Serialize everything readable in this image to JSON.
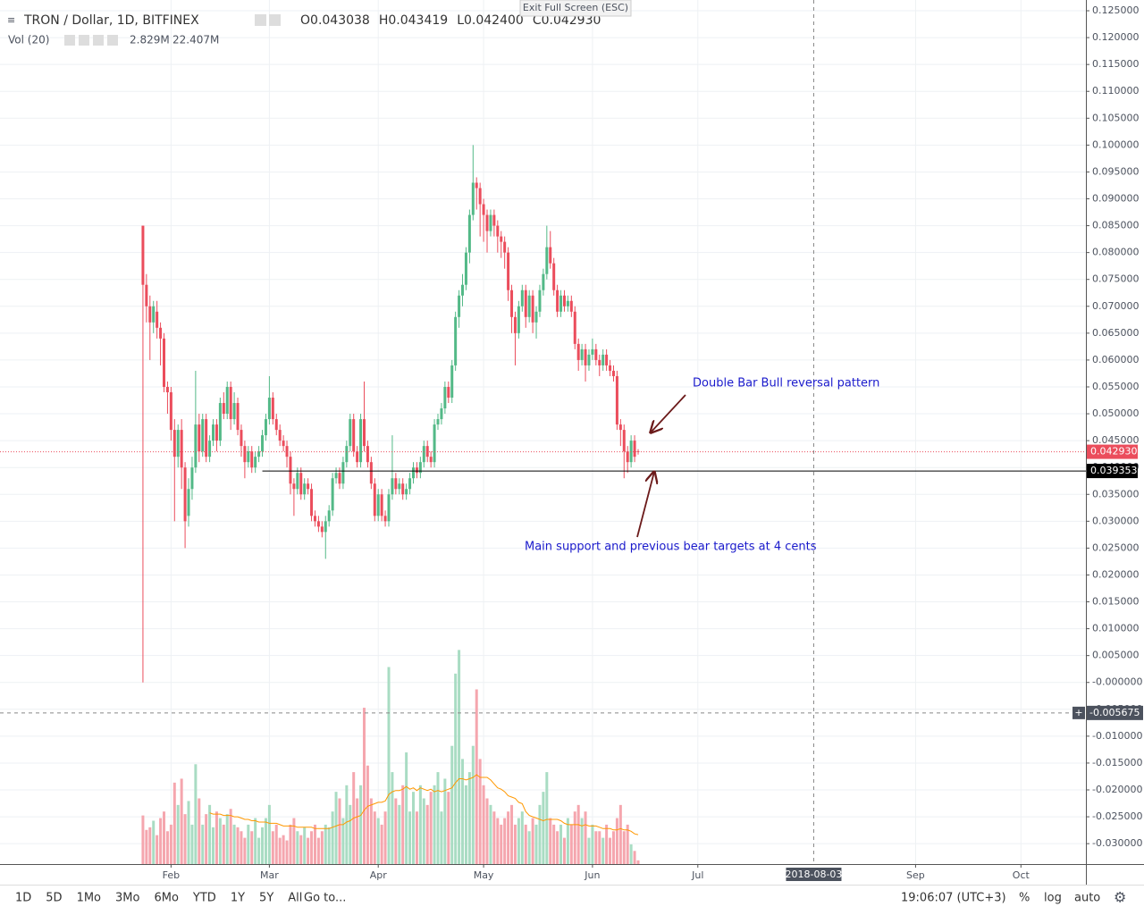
{
  "chart_data": {
    "type": "candlestick",
    "title": "TRON / Dollar, 1D, BITFINEX",
    "ohlc_legend": [
      {
        "label": "O",
        "value": "0.043038"
      },
      {
        "label": "H",
        "value": "0.043419"
      },
      {
        "label": "L",
        "value": "0.042400"
      },
      {
        "label": "C",
        "value": "0.042930"
      }
    ],
    "volume_legend": {
      "label": "Vol (20)",
      "value": "2.829M",
      "ma_value": "22.407M"
    },
    "up_color": "#53b987",
    "down_color": "#eb4d5c",
    "grid": true,
    "xlim": [
      -40.7,
      268.5
    ],
    "xticks": [
      {
        "value": 8,
        "label": "Feb"
      },
      {
        "value": 36,
        "label": "Mar"
      },
      {
        "value": 67,
        "label": "Apr"
      },
      {
        "value": 97,
        "label": "May"
      },
      {
        "value": 128,
        "label": "Jun"
      },
      {
        "value": 158,
        "label": "Jul"
      },
      {
        "value": 220,
        "label": "Sep"
      },
      {
        "value": 250,
        "label": "Oct"
      }
    ],
    "ylim": [
      -0.0338,
      0.127
    ],
    "yticks": [
      {
        "value": 0.125,
        "label": "0.125000"
      },
      {
        "value": 0.12,
        "label": "0.120000"
      },
      {
        "value": 0.115,
        "label": "0.115000"
      },
      {
        "value": 0.11,
        "label": "0.110000"
      },
      {
        "value": 0.105,
        "label": "0.105000"
      },
      {
        "value": 0.1,
        "label": "0.100000"
      },
      {
        "value": 0.095,
        "label": "0.095000"
      },
      {
        "value": 0.09,
        "label": "0.090000"
      },
      {
        "value": 0.085,
        "label": "0.085000"
      },
      {
        "value": 0.08,
        "label": "0.080000"
      },
      {
        "value": 0.075,
        "label": "0.075000"
      },
      {
        "value": 0.07,
        "label": "0.070000"
      },
      {
        "value": 0.065,
        "label": "0.065000"
      },
      {
        "value": 0.06,
        "label": "0.060000"
      },
      {
        "value": 0.055,
        "label": "0.055000"
      },
      {
        "value": 0.05,
        "label": "0.050000"
      },
      {
        "value": 0.045,
        "label": "0.045000"
      },
      {
        "value": 0.04,
        "label": "0.040000"
      },
      {
        "value": 0.035,
        "label": "0.035000"
      },
      {
        "value": 0.03,
        "label": "0.030000"
      },
      {
        "value": 0.025,
        "label": "0.025000"
      },
      {
        "value": 0.02,
        "label": "0.020000"
      },
      {
        "value": 0.015,
        "label": "0.015000"
      },
      {
        "value": 0.01,
        "label": "0.010000"
      },
      {
        "value": 0.005,
        "label": "0.005000"
      },
      {
        "value": 0,
        "label": "-0.000000"
      },
      {
        "value": -0.005,
        "label": "-0.005000"
      },
      {
        "value": -0.01,
        "label": "-0.010000"
      },
      {
        "value": -0.015,
        "label": "-0.015000"
      },
      {
        "value": -0.02,
        "label": "-0.020000"
      },
      {
        "value": -0.025,
        "label": "-0.025000"
      },
      {
        "value": -0.03,
        "label": "-0.030000"
      }
    ],
    "last_price": {
      "value": 0.04293,
      "label": "0.042930",
      "color": "#eb4d5c"
    },
    "support_line": {
      "value": 0.039353,
      "label": "0.039353",
      "x_from": 34,
      "color": "#000000"
    },
    "crosshair": {
      "x": {
        "value": 191,
        "label": "2018-08-03"
      },
      "y": {
        "value": -0.005675,
        "label": "-0.005675"
      }
    },
    "annotations": [
      "Double Bar Bull reversal pattern",
      "Main support and previous bear targets at 4 cents"
    ],
    "candles": [
      [
        0.085,
        0.085,
        0.0,
        0.074
      ],
      [
        0.074,
        0.076,
        0.067,
        0.07
      ],
      [
        0.07,
        0.072,
        0.06,
        0.067
      ],
      [
        0.067,
        0.071,
        0.065,
        0.07
      ],
      [
        0.069,
        0.071,
        0.064,
        0.066
      ],
      [
        0.066,
        0.067,
        0.059,
        0.064
      ],
      [
        0.064,
        0.065,
        0.054,
        0.055
      ],
      [
        0.055,
        0.056,
        0.05,
        0.054
      ],
      [
        0.054,
        0.055,
        0.045,
        0.047
      ],
      [
        0.047,
        0.049,
        0.03,
        0.042
      ],
      [
        0.042,
        0.048,
        0.04,
        0.047
      ],
      [
        0.047,
        0.049,
        0.036,
        0.04
      ],
      [
        0.04,
        0.041,
        0.025,
        0.03
      ],
      [
        0.031,
        0.038,
        0.029,
        0.036
      ],
      [
        0.036,
        0.042,
        0.034,
        0.04
      ],
      [
        0.04,
        0.058,
        0.039,
        0.048
      ],
      [
        0.048,
        0.05,
        0.041,
        0.043
      ],
      [
        0.043,
        0.05,
        0.042,
        0.049
      ],
      [
        0.049,
        0.05,
        0.041,
        0.042
      ],
      [
        0.042,
        0.046,
        0.041,
        0.045
      ],
      [
        0.045,
        0.049,
        0.044,
        0.048
      ],
      [
        0.048,
        0.049,
        0.043,
        0.045
      ],
      [
        0.045,
        0.053,
        0.044,
        0.052
      ],
      [
        0.052,
        0.054,
        0.049,
        0.05
      ],
      [
        0.05,
        0.056,
        0.049,
        0.055
      ],
      [
        0.055,
        0.056,
        0.047,
        0.049
      ],
      [
        0.049,
        0.054,
        0.048,
        0.052
      ],
      [
        0.052,
        0.053,
        0.046,
        0.047
      ],
      [
        0.047,
        0.048,
        0.042,
        0.044
      ],
      [
        0.044,
        0.045,
        0.038,
        0.041
      ],
      [
        0.041,
        0.044,
        0.04,
        0.043
      ],
      [
        0.043,
        0.044,
        0.039,
        0.04
      ],
      [
        0.04,
        0.043,
        0.039,
        0.042
      ],
      [
        0.042,
        0.044,
        0.041,
        0.043
      ],
      [
        0.043,
        0.047,
        0.042,
        0.046
      ],
      [
        0.046,
        0.05,
        0.045,
        0.049
      ],
      [
        0.049,
        0.057,
        0.048,
        0.053
      ],
      [
        0.053,
        0.054,
        0.048,
        0.049
      ],
      [
        0.049,
        0.05,
        0.046,
        0.047
      ],
      [
        0.047,
        0.048,
        0.044,
        0.045
      ],
      [
        0.045,
        0.046,
        0.043,
        0.044
      ],
      [
        0.044,
        0.045,
        0.04,
        0.042
      ],
      [
        0.042,
        0.043,
        0.035,
        0.037
      ],
      [
        0.037,
        0.038,
        0.031,
        0.036
      ],
      [
        0.036,
        0.04,
        0.035,
        0.039
      ],
      [
        0.039,
        0.04,
        0.034,
        0.035
      ],
      [
        0.035,
        0.038,
        0.034,
        0.037
      ],
      [
        0.037,
        0.038,
        0.035,
        0.036
      ],
      [
        0.036,
        0.037,
        0.03,
        0.031
      ],
      [
        0.031,
        0.032,
        0.029,
        0.03
      ],
      [
        0.03,
        0.031,
        0.028,
        0.029
      ],
      [
        0.029,
        0.03,
        0.027,
        0.028
      ],
      [
        0.028,
        0.031,
        0.023,
        0.03
      ],
      [
        0.03,
        0.033,
        0.029,
        0.032
      ],
      [
        0.032,
        0.039,
        0.031,
        0.038
      ],
      [
        0.038,
        0.04,
        0.037,
        0.039
      ],
      [
        0.039,
        0.04,
        0.036,
        0.037
      ],
      [
        0.037,
        0.042,
        0.036,
        0.041
      ],
      [
        0.041,
        0.045,
        0.04,
        0.044
      ],
      [
        0.044,
        0.05,
        0.043,
        0.049
      ],
      [
        0.049,
        0.05,
        0.042,
        0.043
      ],
      [
        0.043,
        0.044,
        0.04,
        0.041
      ],
      [
        0.041,
        0.05,
        0.04,
        0.049
      ],
      [
        0.049,
        0.056,
        0.043,
        0.044
      ],
      [
        0.044,
        0.045,
        0.04,
        0.041
      ],
      [
        0.041,
        0.042,
        0.036,
        0.037
      ],
      [
        0.037,
        0.038,
        0.03,
        0.031
      ],
      [
        0.031,
        0.036,
        0.03,
        0.035
      ],
      [
        0.035,
        0.036,
        0.03,
        0.031
      ],
      [
        0.031,
        0.032,
        0.029,
        0.03
      ],
      [
        0.03,
        0.036,
        0.029,
        0.035
      ],
      [
        0.035,
        0.046,
        0.034,
        0.038
      ],
      [
        0.038,
        0.039,
        0.035,
        0.036
      ],
      [
        0.036,
        0.038,
        0.035,
        0.037
      ],
      [
        0.037,
        0.038,
        0.034,
        0.035
      ],
      [
        0.035,
        0.037,
        0.034,
        0.036
      ],
      [
        0.036,
        0.039,
        0.035,
        0.038
      ],
      [
        0.038,
        0.041,
        0.037,
        0.04
      ],
      [
        0.04,
        0.041,
        0.038,
        0.039
      ],
      [
        0.039,
        0.042,
        0.038,
        0.041
      ],
      [
        0.041,
        0.045,
        0.04,
        0.044
      ],
      [
        0.044,
        0.045,
        0.041,
        0.042
      ],
      [
        0.042,
        0.043,
        0.04,
        0.041
      ],
      [
        0.041,
        0.049,
        0.04,
        0.048
      ],
      [
        0.048,
        0.05,
        0.047,
        0.049
      ],
      [
        0.049,
        0.052,
        0.048,
        0.051
      ],
      [
        0.051,
        0.056,
        0.05,
        0.055
      ],
      [
        0.055,
        0.056,
        0.052,
        0.053
      ],
      [
        0.053,
        0.06,
        0.052,
        0.059
      ],
      [
        0.059,
        0.069,
        0.058,
        0.068
      ],
      [
        0.068,
        0.073,
        0.066,
        0.072
      ],
      [
        0.072,
        0.076,
        0.07,
        0.074
      ],
      [
        0.074,
        0.081,
        0.073,
        0.08
      ],
      [
        0.08,
        0.088,
        0.078,
        0.087
      ],
      [
        0.087,
        0.1,
        0.086,
        0.093
      ],
      [
        0.093,
        0.094,
        0.088,
        0.092
      ],
      [
        0.092,
        0.093,
        0.083,
        0.089
      ],
      [
        0.089,
        0.09,
        0.082,
        0.087
      ],
      [
        0.087,
        0.088,
        0.08,
        0.084
      ],
      [
        0.084,
        0.088,
        0.083,
        0.087
      ],
      [
        0.087,
        0.088,
        0.083,
        0.085
      ],
      [
        0.085,
        0.086,
        0.08,
        0.083
      ],
      [
        0.083,
        0.084,
        0.079,
        0.082
      ],
      [
        0.082,
        0.083,
        0.077,
        0.08
      ],
      [
        0.08,
        0.081,
        0.071,
        0.073
      ],
      [
        0.073,
        0.074,
        0.065,
        0.068
      ],
      [
        0.068,
        0.069,
        0.059,
        0.065
      ],
      [
        0.065,
        0.071,
        0.064,
        0.07
      ],
      [
        0.07,
        0.074,
        0.069,
        0.073
      ],
      [
        0.073,
        0.074,
        0.066,
        0.068
      ],
      [
        0.068,
        0.073,
        0.067,
        0.072
      ],
      [
        0.072,
        0.073,
        0.065,
        0.067
      ],
      [
        0.067,
        0.07,
        0.064,
        0.069
      ],
      [
        0.069,
        0.074,
        0.068,
        0.073
      ],
      [
        0.073,
        0.077,
        0.072,
        0.076
      ],
      [
        0.076,
        0.085,
        0.075,
        0.081
      ],
      [
        0.081,
        0.084,
        0.077,
        0.078
      ],
      [
        0.078,
        0.079,
        0.072,
        0.073
      ],
      [
        0.073,
        0.074,
        0.068,
        0.069
      ],
      [
        0.069,
        0.073,
        0.068,
        0.072
      ],
      [
        0.072,
        0.073,
        0.069,
        0.07
      ],
      [
        0.07,
        0.072,
        0.069,
        0.071
      ],
      [
        0.071,
        0.072,
        0.068,
        0.069
      ],
      [
        0.069,
        0.07,
        0.062,
        0.063
      ],
      [
        0.063,
        0.064,
        0.058,
        0.06
      ],
      [
        0.06,
        0.063,
        0.059,
        0.062
      ],
      [
        0.062,
        0.063,
        0.056,
        0.059
      ],
      [
        0.059,
        0.062,
        0.058,
        0.061
      ],
      [
        0.061,
        0.064,
        0.06,
        0.062
      ],
      [
        0.062,
        0.063,
        0.059,
        0.06
      ],
      [
        0.06,
        0.061,
        0.057,
        0.059
      ],
      [
        0.059,
        0.062,
        0.058,
        0.061
      ],
      [
        0.061,
        0.062,
        0.058,
        0.059
      ],
      [
        0.059,
        0.06,
        0.057,
        0.058
      ],
      [
        0.058,
        0.059,
        0.056,
        0.057
      ],
      [
        0.057,
        0.058,
        0.047,
        0.048
      ],
      [
        0.048,
        0.049,
        0.044,
        0.047
      ],
      [
        0.047,
        0.048,
        0.038,
        0.043
      ],
      [
        0.043,
        0.044,
        0.039,
        0.041
      ],
      [
        0.041,
        0.046,
        0.04,
        0.045
      ],
      [
        0.045,
        0.046,
        0.041,
        0.042
      ],
      [
        0.043038,
        0.043419,
        0.0424,
        0.04293
      ]
    ],
    "volume": {
      "ylim": [
        0,
        200
      ],
      "up_color": "#a9dcc3",
      "down_color": "#f5a6ae",
      "ma_color": "#ff9800",
      "values": [
        37,
        26,
        28,
        33,
        22,
        35,
        40,
        25,
        30,
        62,
        45,
        65,
        38,
        48,
        30,
        76,
        50,
        30,
        38,
        45,
        28,
        40,
        35,
        30,
        38,
        42,
        30,
        28,
        25,
        20,
        30,
        25,
        35,
        20,
        28,
        35,
        45,
        25,
        30,
        20,
        22,
        18,
        30,
        35,
        25,
        22,
        28,
        20,
        25,
        30,
        20,
        25,
        30,
        28,
        40,
        55,
        50,
        35,
        60,
        45,
        70,
        50,
        60,
        119,
        75,
        50,
        40,
        35,
        30,
        40,
        150,
        70,
        50,
        45,
        60,
        85,
        40,
        55,
        40,
        60,
        50,
        45,
        55,
        60,
        70,
        40,
        65,
        55,
        90,
        145,
        163,
        80,
        60,
        70,
        90,
        133,
        80,
        60,
        50,
        45,
        40,
        35,
        30,
        35,
        40,
        45,
        30,
        35,
        40,
        30,
        25,
        35,
        30,
        45,
        55,
        70,
        35,
        30,
        25,
        30,
        20,
        35,
        30,
        40,
        45,
        35,
        40,
        20,
        30,
        25,
        25,
        20,
        30,
        20,
        25,
        35,
        45,
        25,
        30,
        15,
        10,
        2.829
      ],
      "ma": [
        null,
        null,
        null,
        null,
        null,
        null,
        null,
        null,
        null,
        null,
        null,
        null,
        null,
        null,
        null,
        null,
        null,
        null,
        null,
        39,
        38,
        38,
        38,
        37,
        37,
        37,
        36,
        36,
        35,
        34,
        34,
        33,
        33,
        32,
        32,
        32,
        31,
        31,
        31,
        30,
        29,
        29,
        29,
        29,
        28,
        28,
        28,
        28,
        28,
        27,
        27,
        27,
        27,
        27,
        28,
        29,
        30,
        30,
        32,
        33,
        35,
        36,
        37,
        41,
        44,
        45,
        46,
        47,
        47,
        48,
        53,
        55,
        56,
        56,
        57,
        59,
        57,
        58,
        56,
        58,
        57,
        56,
        57,
        55,
        56,
        55,
        56,
        57,
        58,
        62,
        65,
        65,
        64,
        65,
        66,
        68,
        66,
        66,
        66,
        64,
        61,
        58,
        57,
        55,
        52,
        51,
        50,
        47,
        46,
        40,
        37,
        36,
        35,
        34,
        33,
        34,
        34,
        34,
        34,
        33,
        31,
        30,
        30,
        30,
        30,
        29,
        30,
        29,
        29,
        29,
        28,
        27,
        27,
        27,
        26,
        26,
        27,
        26,
        26,
        25,
        23,
        22.407
      ]
    }
  },
  "ui": {
    "exit_fullscreen": "Exit Full Screen (ESC)",
    "ranges": [
      "1D",
      "5D",
      "1Mo",
      "3Mo",
      "6Mo",
      "YTD",
      "1Y",
      "5Y",
      "All"
    ],
    "goto": "Go to...",
    "clock": "19:06:07 (UTC+3)",
    "percent": "%",
    "log": "log",
    "auto": "auto"
  }
}
